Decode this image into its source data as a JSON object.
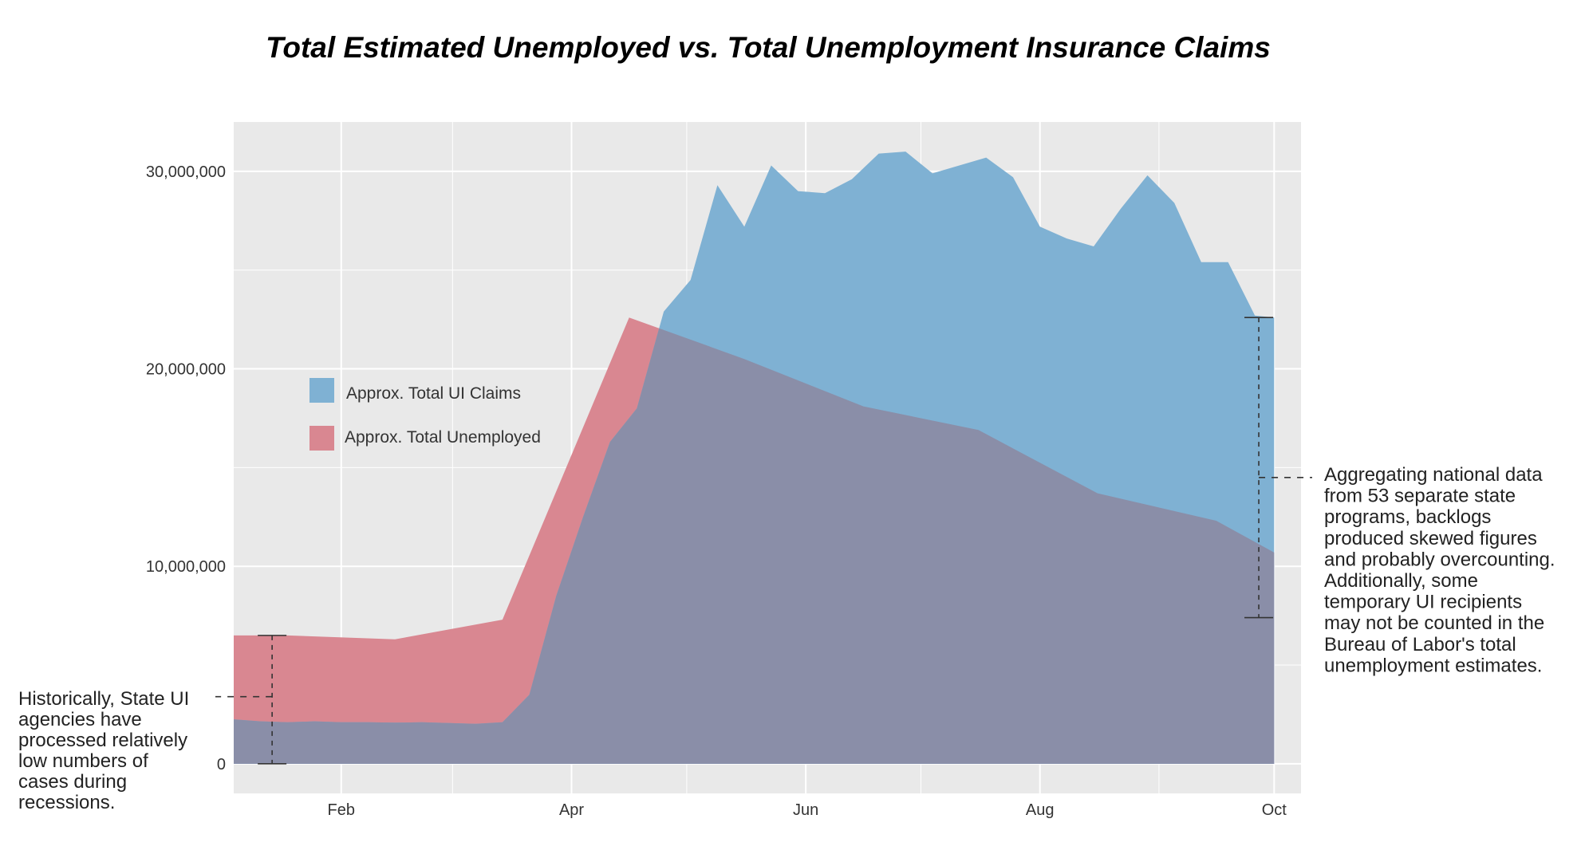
{
  "chart_data": {
    "type": "area",
    "title": "Total Estimated Unemployed vs. Total Unemployment Insurance Claims",
    "xlabel": "",
    "ylabel": "",
    "x_range": [
      "2020-01-04",
      "2020-10-08"
    ],
    "ylim": [
      -1500000,
      32500000
    ],
    "x_tick_labels": [
      "Feb",
      "Apr",
      "Jun",
      "Aug",
      "Oct"
    ],
    "x_tick_dates": [
      "2020-02-01",
      "2020-04-01",
      "2020-06-01",
      "2020-08-01",
      "2020-10-01"
    ],
    "x_minor_tick_dates": [
      "2020-01-01",
      "2020-03-01",
      "2020-05-01",
      "2020-07-01",
      "2020-09-01"
    ],
    "y_tick_labels": [
      "0",
      "10,000,000",
      "20,000,000",
      "30,000,000"
    ],
    "y_ticks": [
      0,
      10000000,
      20000000,
      30000000
    ],
    "y_minor_ticks": [
      5000000,
      15000000,
      25000000
    ],
    "grid": true,
    "legend_position": "upper-left",
    "series": [
      {
        "name": "Approx. Total UI Claims",
        "color": "#7fb1d3",
        "points": [
          [
            "2020-01-04",
            2250000
          ],
          [
            "2020-01-11",
            2150000
          ],
          [
            "2020-01-18",
            2100000
          ],
          [
            "2020-01-25",
            2150000
          ],
          [
            "2020-02-01",
            2100000
          ],
          [
            "2020-02-08",
            2100000
          ],
          [
            "2020-02-15",
            2080000
          ],
          [
            "2020-02-22",
            2100000
          ],
          [
            "2020-02-29",
            2060000
          ],
          [
            "2020-03-07",
            2020000
          ],
          [
            "2020-03-14",
            2100000
          ],
          [
            "2020-03-21",
            3500000
          ],
          [
            "2020-03-28",
            8500000
          ],
          [
            "2020-04-04",
            12500000
          ],
          [
            "2020-04-11",
            16300000
          ],
          [
            "2020-04-18",
            18000000
          ],
          [
            "2020-04-25",
            22900000
          ],
          [
            "2020-05-02",
            24500000
          ],
          [
            "2020-05-09",
            29300000
          ],
          [
            "2020-05-16",
            27200000
          ],
          [
            "2020-05-23",
            30300000
          ],
          [
            "2020-05-30",
            29000000
          ],
          [
            "2020-06-06",
            28900000
          ],
          [
            "2020-06-13",
            29600000
          ],
          [
            "2020-06-20",
            30900000
          ],
          [
            "2020-06-27",
            31000000
          ],
          [
            "2020-07-04",
            29900000
          ],
          [
            "2020-07-11",
            30300000
          ],
          [
            "2020-07-18",
            30700000
          ],
          [
            "2020-07-25",
            29700000
          ],
          [
            "2020-08-01",
            27200000
          ],
          [
            "2020-08-08",
            26600000
          ],
          [
            "2020-08-15",
            26200000
          ],
          [
            "2020-08-22",
            28100000
          ],
          [
            "2020-08-29",
            29800000
          ],
          [
            "2020-09-05",
            28400000
          ],
          [
            "2020-09-12",
            25400000
          ],
          [
            "2020-09-19",
            25400000
          ],
          [
            "2020-09-26",
            22700000
          ],
          [
            "2020-10-01",
            22600000
          ]
        ]
      },
      {
        "name": "Approx. Total Unemployed",
        "color": "#d98791",
        "points": [
          [
            "2020-01-04",
            6500000
          ],
          [
            "2020-01-18",
            6500000
          ],
          [
            "2020-02-15",
            6300000
          ],
          [
            "2020-03-14",
            7300000
          ],
          [
            "2020-04-16",
            22600000
          ],
          [
            "2020-05-16",
            20500000
          ],
          [
            "2020-06-16",
            18100000
          ],
          [
            "2020-07-16",
            16900000
          ],
          [
            "2020-08-16",
            13700000
          ],
          [
            "2020-09-16",
            12300000
          ],
          [
            "2020-10-01",
            10700000
          ]
        ]
      }
    ],
    "overlap_color": "#8a8ea8",
    "annotations": [
      {
        "lines": [
          "Historically, State UI",
          "agencies have",
          "processed relatively",
          "low numbers of",
          "cases during",
          "recessions."
        ],
        "bracket_date": "2020-01-14",
        "bracket_range": [
          0,
          6500000
        ],
        "pointer_value": 3400000
      },
      {
        "lines": [
          "Aggregating national data",
          "from 53 separate state",
          "programs, backlogs",
          "produced skewed figures",
          "and probably overcounting.",
          "Additionally, some",
          "temporary UI recipients",
          "may not be counted in the",
          "Bureau of Labor's total",
          "unemployment estimates."
        ],
        "bracket_date": "2020-09-27",
        "bracket_range": [
          7400000,
          22600000
        ],
        "pointer_value": 14500000
      }
    ]
  }
}
